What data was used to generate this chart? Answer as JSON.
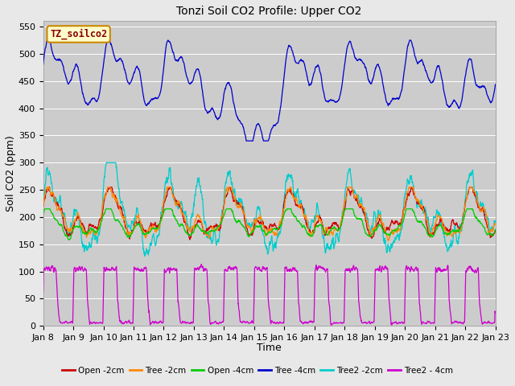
{
  "title": "Tonzi Soil CO2 Profile: Upper CO2",
  "xlabel": "Time",
  "ylabel": "Soil CO2 (ppm)",
  "ylim": [
    0,
    560
  ],
  "yticks": [
    0,
    50,
    100,
    150,
    200,
    250,
    300,
    350,
    400,
    450,
    500,
    550
  ],
  "fig_bg_color": "#e8e8e8",
  "plot_bg_color": "#cccccc",
  "legend_label": "TZ_soilco2",
  "legend_bg": "#ffffcc",
  "legend_border": "#cc8800",
  "colors": {
    "Open -2cm": "#cc0000",
    "Tree -2cm": "#ff8800",
    "Open -4cm": "#00cc00",
    "Tree -4cm": "#0000cc",
    "Tree2 -2cm": "#00cccc",
    "Tree2 - 4cm": "#cc00cc"
  },
  "x_tick_labels": [
    "Jan 8",
    "Jan 9",
    "Jan 10",
    "Jan 11",
    "Jan 12",
    "Jan 13",
    "Jan 14",
    "Jan 15",
    "Jan 16",
    "Jan 17",
    "Jan 18",
    "Jan 19",
    "Jan 20",
    "Jan 21",
    "Jan 22",
    "Jan 23"
  ],
  "n_points": 2000,
  "title_fontsize": 10,
  "axis_label_fontsize": 9,
  "tick_fontsize": 8
}
